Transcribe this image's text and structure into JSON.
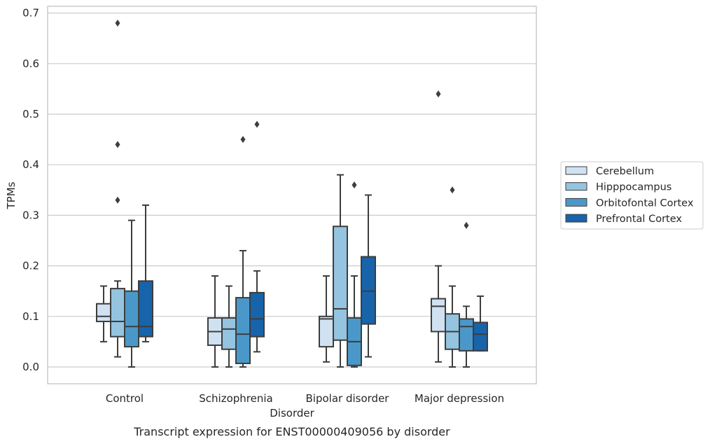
{
  "chart_data": {
    "type": "box",
    "xlabel": "Disorder",
    "ylabel": "TPMs",
    "caption": "Transcript expression for ENST00000409056 by disorder",
    "ylim": [
      -0.033,
      0.715
    ],
    "y_ticks": [
      "0.0",
      "0.1",
      "0.2",
      "0.3",
      "0.4",
      "0.5",
      "0.6",
      "0.7"
    ],
    "y_tick_values": [
      0.0,
      0.1,
      0.2,
      0.3,
      0.4,
      0.5,
      0.6,
      0.7
    ],
    "grid": "horizontal",
    "legend_position": "right",
    "categories": [
      "Control",
      "Schizophrenia",
      "Bipolar disorder",
      "Major depression"
    ],
    "series": [
      {
        "name": "Cerebellum",
        "color": "#d0e1f2",
        "boxes": [
          {
            "whisker_low": 0.05,
            "q1": 0.09,
            "median": 0.1,
            "q3": 0.125,
            "whisker_high": 0.16,
            "outliers": []
          },
          {
            "whisker_low": 0.0,
            "q1": 0.043,
            "median": 0.07,
            "q3": 0.097,
            "whisker_high": 0.18,
            "outliers": []
          },
          {
            "whisker_low": 0.01,
            "q1": 0.04,
            "median": 0.095,
            "q3": 0.1,
            "whisker_high": 0.18,
            "outliers": []
          },
          {
            "whisker_low": 0.01,
            "q1": 0.07,
            "median": 0.12,
            "q3": 0.135,
            "whisker_high": 0.2,
            "outliers": [
              0.54
            ]
          }
        ]
      },
      {
        "name": "Hipppocampus",
        "color": "#94c4df",
        "boxes": [
          {
            "whisker_low": 0.02,
            "q1": 0.06,
            "median": 0.09,
            "q3": 0.155,
            "whisker_high": 0.17,
            "outliers": [
              0.68,
              0.44,
              0.33
            ]
          },
          {
            "whisker_low": 0.0,
            "q1": 0.035,
            "median": 0.075,
            "q3": 0.097,
            "whisker_high": 0.16,
            "outliers": []
          },
          {
            "whisker_low": 0.0,
            "q1": 0.053,
            "median": 0.115,
            "q3": 0.278,
            "whisker_high": 0.38,
            "outliers": []
          },
          {
            "whisker_low": 0.0,
            "q1": 0.035,
            "median": 0.07,
            "q3": 0.105,
            "whisker_high": 0.16,
            "outliers": [
              0.35
            ]
          }
        ]
      },
      {
        "name": "Orbitofontal Cortex",
        "color": "#4a98c9",
        "boxes": [
          {
            "whisker_low": 0.0,
            "q1": 0.04,
            "median": 0.08,
            "q3": 0.15,
            "whisker_high": 0.29,
            "outliers": []
          },
          {
            "whisker_low": 0.0,
            "q1": 0.007,
            "median": 0.065,
            "q3": 0.137,
            "whisker_high": 0.23,
            "outliers": [
              0.45
            ]
          },
          {
            "whisker_low": 0.0,
            "q1": 0.003,
            "median": 0.05,
            "q3": 0.097,
            "whisker_high": 0.18,
            "outliers": [
              0.36
            ]
          },
          {
            "whisker_low": 0.0,
            "q1": 0.032,
            "median": 0.08,
            "q3": 0.095,
            "whisker_high": 0.12,
            "outliers": [
              0.28
            ]
          }
        ]
      },
      {
        "name": "Prefrontal Cortex",
        "color": "#1764ab",
        "boxes": [
          {
            "whisker_low": 0.05,
            "q1": 0.06,
            "median": 0.08,
            "q3": 0.17,
            "whisker_high": 0.32,
            "outliers": []
          },
          {
            "whisker_low": 0.03,
            "q1": 0.06,
            "median": 0.095,
            "q3": 0.147,
            "whisker_high": 0.19,
            "outliers": [
              0.48
            ]
          },
          {
            "whisker_low": 0.02,
            "q1": 0.085,
            "median": 0.15,
            "q3": 0.218,
            "whisker_high": 0.34,
            "outliers": []
          },
          {
            "whisker_low": 0.032,
            "q1": 0.032,
            "median": 0.065,
            "q3": 0.088,
            "whisker_high": 0.14,
            "outliers": []
          }
        ]
      }
    ]
  }
}
